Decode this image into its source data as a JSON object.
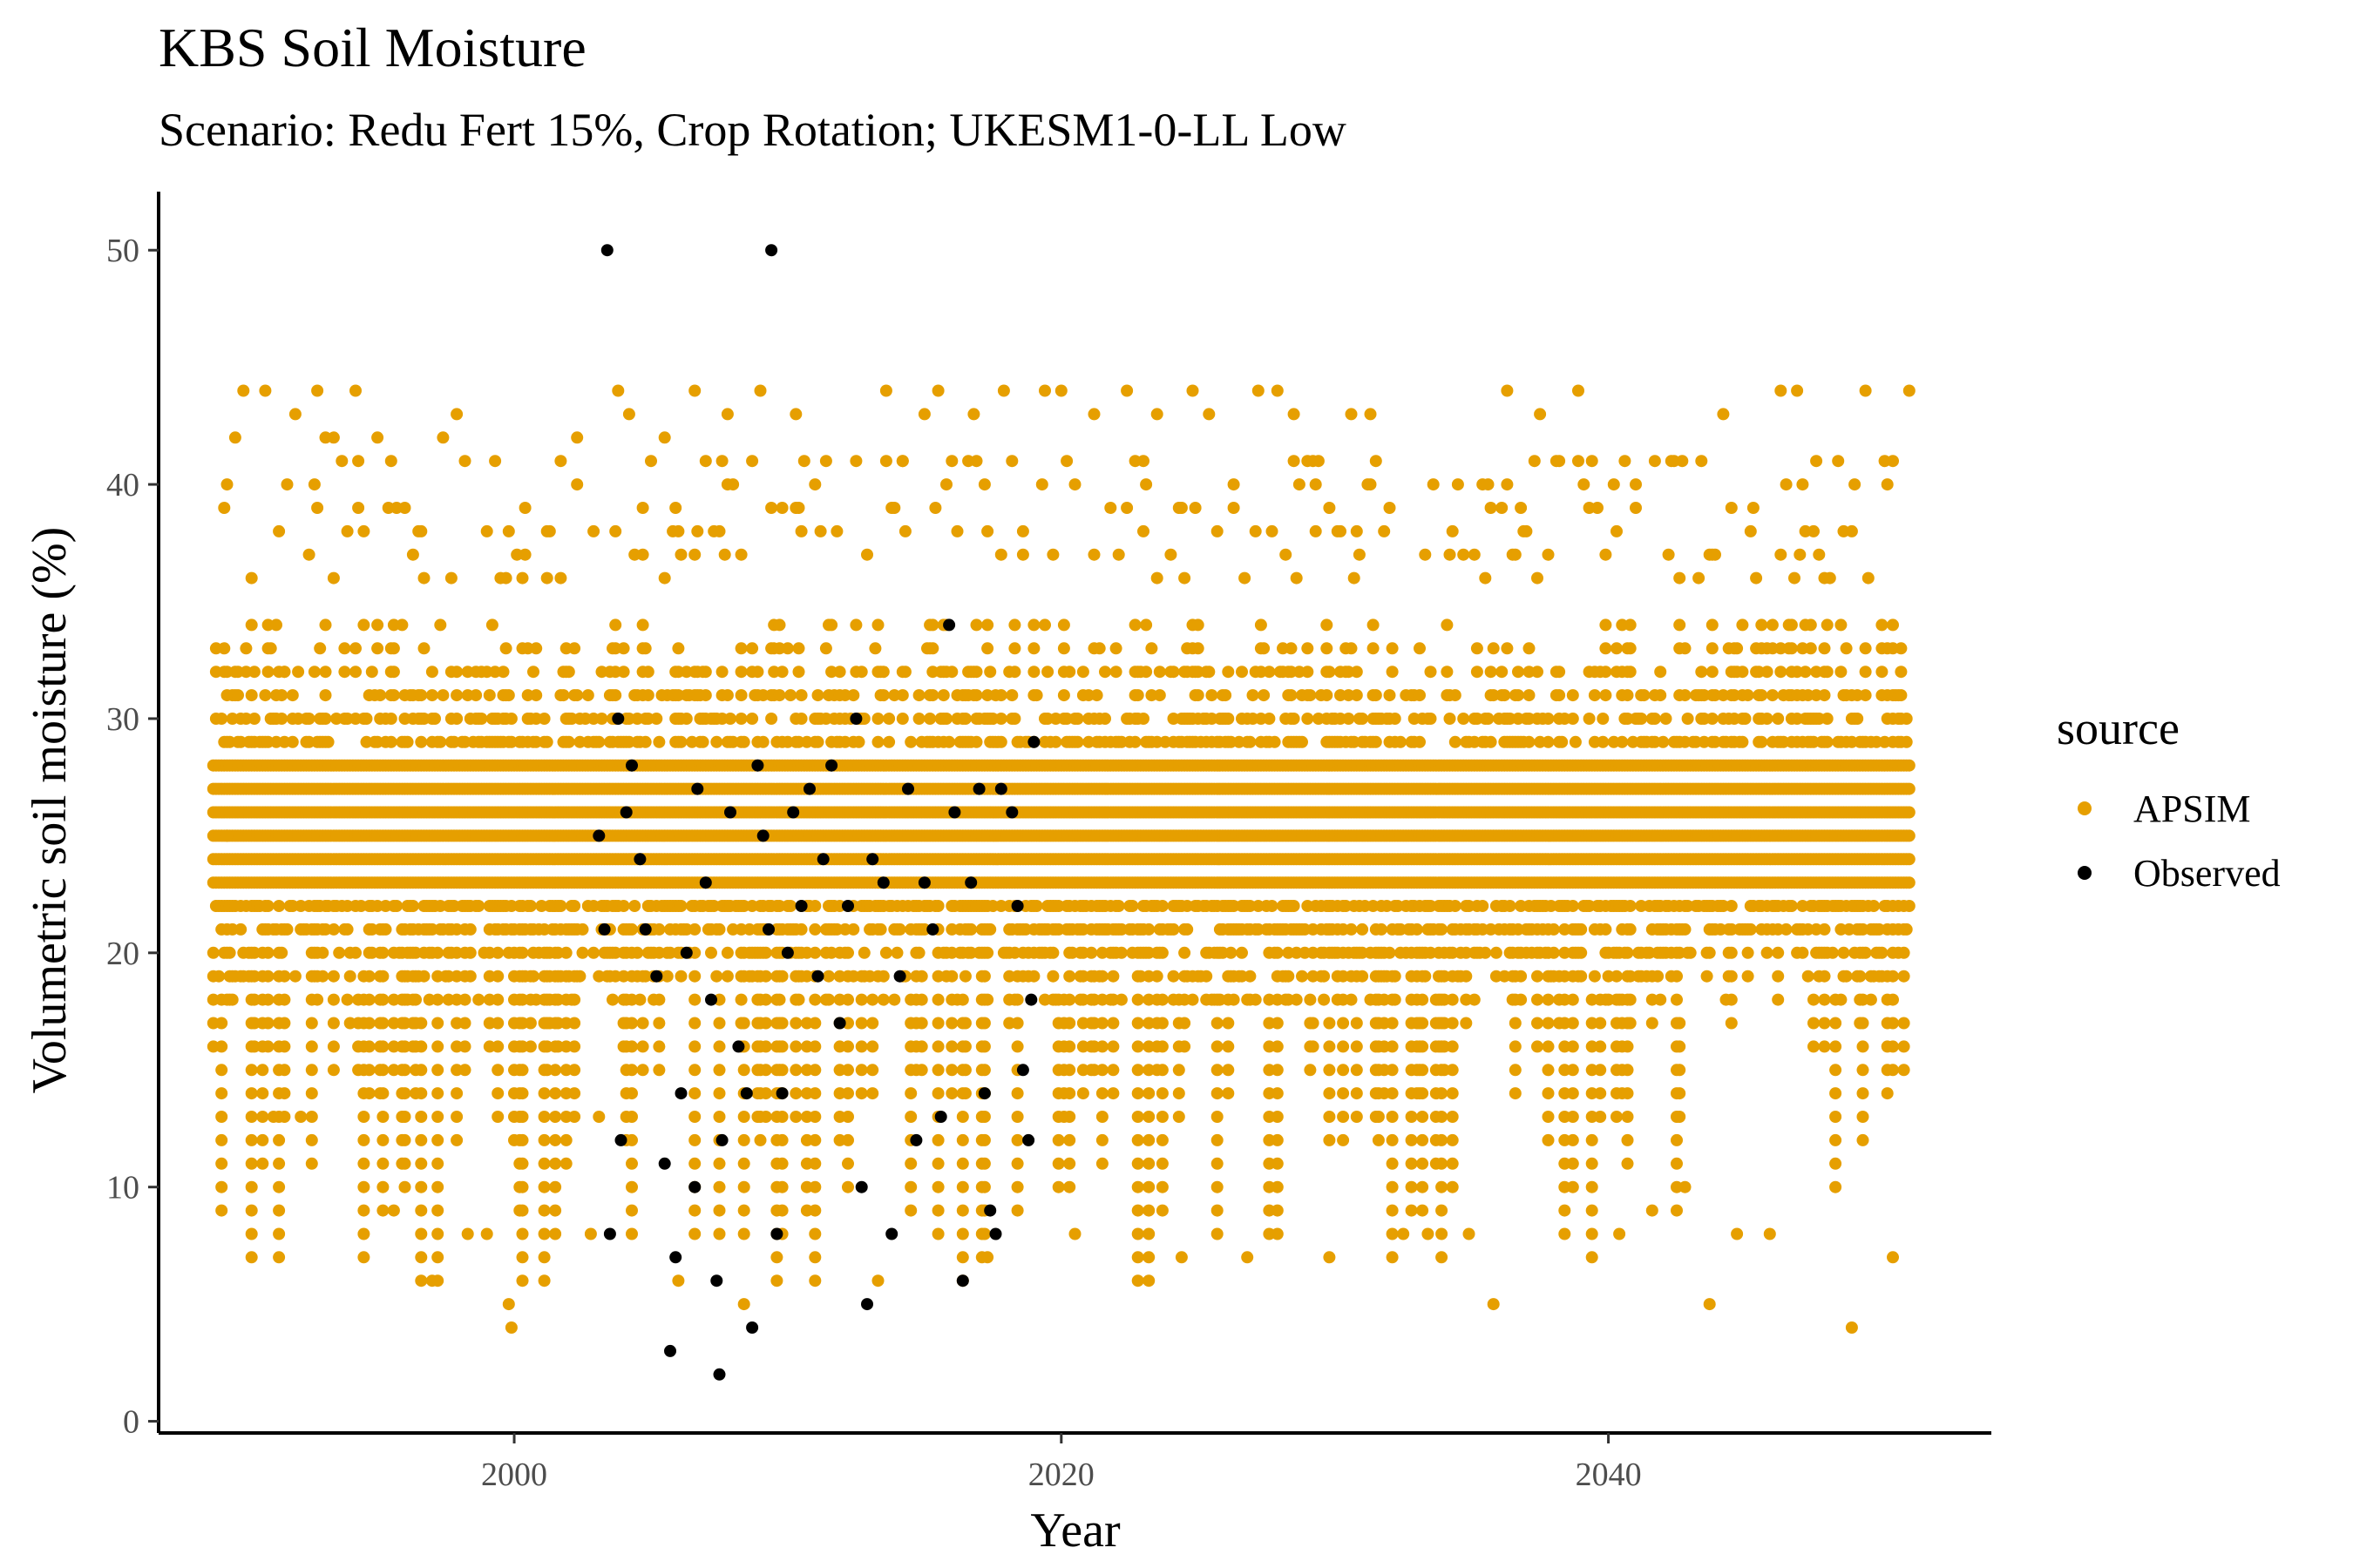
{
  "chart_data": {
    "type": "scatter",
    "title": "KBS Soil Moisture",
    "subtitle": "Scenario: Redu Fert 15%, Crop Rotation; UKESM1-0-LL Low",
    "xlabel": "Year",
    "ylabel": "Volumetric soil moisture (%)",
    "xlim": [
      1987,
      2054
    ],
    "ylim": [
      -0.5,
      52.5
    ],
    "x_ticks": [
      2000,
      2020,
      2040
    ],
    "y_ticks": [
      0,
      10,
      20,
      30,
      40,
      50
    ],
    "grid": false,
    "legend": {
      "title": "source",
      "position": "right"
    },
    "series": [
      {
        "name": "APSIM",
        "color": "#E69F00",
        "x_range": [
          1989,
          2051
        ],
        "y_range": [
          4,
          44
        ],
        "note_x_sampling": "daily",
        "points": [
          [
            1989.2,
            19
          ],
          [
            1989.5,
            25
          ],
          [
            1989.8,
            42
          ],
          [
            1990.1,
            44
          ],
          [
            1990.4,
            34
          ],
          [
            1990.9,
            44
          ],
          [
            1991.2,
            13
          ],
          [
            1991.6,
            32
          ],
          [
            1992.0,
            43
          ],
          [
            1992.2,
            13
          ],
          [
            1992.8,
            44
          ],
          [
            1993.1,
            42
          ],
          [
            1993.4,
            42
          ],
          [
            1994.0,
            17
          ],
          [
            1994.2,
            44
          ],
          [
            1994.3,
            41
          ],
          [
            1995.0,
            42
          ],
          [
            1995.6,
            9
          ],
          [
            1996.0,
            39
          ],
          [
            1996.5,
            38
          ],
          [
            1997.0,
            6
          ],
          [
            1997.4,
            42
          ],
          [
            1997.9,
            43
          ],
          [
            1998.3,
            8
          ],
          [
            1999.0,
            8
          ],
          [
            1999.5,
            36
          ],
          [
            1999.8,
            5
          ],
          [
            1999.9,
            4
          ],
          [
            2000.4,
            39
          ],
          [
            2001.2,
            38
          ],
          [
            2001.7,
            41
          ],
          [
            2002.3,
            42
          ],
          [
            2002.8,
            8
          ],
          [
            2003.1,
            13
          ],
          [
            2003.8,
            44
          ],
          [
            2004.2,
            43
          ],
          [
            2004.7,
            39
          ],
          [
            2005.5,
            42
          ],
          [
            2006.0,
            6
          ],
          [
            2006.6,
            44
          ],
          [
            2007.0,
            41
          ],
          [
            2007.8,
            43
          ],
          [
            2008.4,
            5
          ],
          [
            2009.0,
            44
          ],
          [
            2009.4,
            39
          ],
          [
            2010.3,
            43
          ],
          [
            2011.0,
            40
          ],
          [
            2011.8,
            38
          ],
          [
            2012.5,
            41
          ],
          [
            2013.3,
            6
          ],
          [
            2013.6,
            44
          ],
          [
            2014.2,
            41
          ],
          [
            2015.0,
            43
          ],
          [
            2015.5,
            44
          ],
          [
            2016.0,
            41
          ],
          [
            2016.8,
            43
          ],
          [
            2017.3,
            7
          ],
          [
            2017.9,
            44
          ],
          [
            2018.6,
            38
          ],
          [
            2019.4,
            44
          ],
          [
            2020.0,
            44
          ],
          [
            2020.5,
            8
          ],
          [
            2021.2,
            43
          ],
          [
            2021.8,
            39
          ],
          [
            2022.4,
            44
          ],
          [
            2023.0,
            41
          ],
          [
            2023.5,
            43
          ],
          [
            2024.4,
            7
          ],
          [
            2024.8,
            44
          ],
          [
            2025.4,
            43
          ],
          [
            2026.3,
            39
          ],
          [
            2026.8,
            7
          ],
          [
            2027.2,
            44
          ],
          [
            2027.9,
            44
          ],
          [
            2028.5,
            43
          ],
          [
            2029.3,
            40
          ],
          [
            2029.8,
            7
          ],
          [
            2030.6,
            43
          ],
          [
            2031.3,
            43
          ],
          [
            2032.0,
            39
          ],
          [
            2032.5,
            8
          ],
          [
            2033.4,
            8
          ],
          [
            2034.2,
            37
          ],
          [
            2034.9,
            8
          ],
          [
            2035.5,
            36
          ],
          [
            2035.8,
            5
          ],
          [
            2036.3,
            44
          ],
          [
            2036.9,
            38
          ],
          [
            2037.5,
            43
          ],
          [
            2038.2,
            41
          ],
          [
            2038.9,
            44
          ],
          [
            2039.6,
            39
          ],
          [
            2040.4,
            8
          ],
          [
            2041.0,
            40
          ],
          [
            2041.6,
            9
          ],
          [
            2042.3,
            41
          ],
          [
            2042.8,
            10
          ],
          [
            2043.4,
            41
          ],
          [
            2043.7,
            5
          ],
          [
            2044.2,
            43
          ],
          [
            2044.7,
            8
          ],
          [
            2045.3,
            39
          ],
          [
            2045.9,
            8
          ],
          [
            2046.3,
            44
          ],
          [
            2046.9,
            44
          ],
          [
            2047.5,
            38
          ],
          [
            2048.4,
            41
          ],
          [
            2048.9,
            4
          ],
          [
            2049.4,
            44
          ],
          [
            2050.1,
            41
          ],
          [
            2050.4,
            7
          ],
          [
            2051.0,
            44
          ]
        ]
      },
      {
        "name": "Observed",
        "color": "#000000",
        "points": [
          [
            2003.4,
            50
          ],
          [
            2009.4,
            50
          ],
          [
            2003.1,
            25
          ],
          [
            2003.3,
            21
          ],
          [
            2003.5,
            8
          ],
          [
            2003.8,
            30
          ],
          [
            2003.9,
            12
          ],
          [
            2004.1,
            26
          ],
          [
            2004.3,
            28
          ],
          [
            2004.6,
            24
          ],
          [
            2004.8,
            21
          ],
          [
            2005.2,
            19
          ],
          [
            2005.5,
            11
          ],
          [
            2005.7,
            3
          ],
          [
            2005.9,
            7
          ],
          [
            2006.1,
            14
          ],
          [
            2006.3,
            20
          ],
          [
            2006.6,
            10
          ],
          [
            2006.7,
            27
          ],
          [
            2007.0,
            23
          ],
          [
            2007.2,
            18
          ],
          [
            2007.4,
            6
          ],
          [
            2007.5,
            2
          ],
          [
            2007.6,
            12
          ],
          [
            2007.9,
            26
          ],
          [
            2008.2,
            16
          ],
          [
            2008.5,
            14
          ],
          [
            2008.7,
            4
          ],
          [
            2008.9,
            28
          ],
          [
            2009.1,
            25
          ],
          [
            2009.3,
            21
          ],
          [
            2009.6,
            8
          ],
          [
            2009.8,
            14
          ],
          [
            2010.0,
            20
          ],
          [
            2010.2,
            26
          ],
          [
            2010.5,
            22
          ],
          [
            2010.8,
            27
          ],
          [
            2011.1,
            19
          ],
          [
            2011.3,
            24
          ],
          [
            2011.6,
            28
          ],
          [
            2011.9,
            17
          ],
          [
            2012.2,
            22
          ],
          [
            2012.5,
            30
          ],
          [
            2012.7,
            10
          ],
          [
            2012.9,
            5
          ],
          [
            2013.1,
            24
          ],
          [
            2013.5,
            23
          ],
          [
            2013.8,
            8
          ],
          [
            2014.1,
            19
          ],
          [
            2014.4,
            27
          ],
          [
            2014.7,
            12
          ],
          [
            2015.0,
            23
          ],
          [
            2015.3,
            21
          ],
          [
            2015.6,
            13
          ],
          [
            2015.9,
            34
          ],
          [
            2016.1,
            26
          ],
          [
            2016.4,
            6
          ],
          [
            2016.7,
            23
          ],
          [
            2017.0,
            27
          ],
          [
            2017.2,
            14
          ],
          [
            2017.4,
            9
          ],
          [
            2017.6,
            8
          ],
          [
            2017.8,
            27
          ],
          [
            2018.2,
            26
          ],
          [
            2018.4,
            22
          ],
          [
            2018.6,
            15
          ],
          [
            2018.8,
            12
          ],
          [
            2018.9,
            18
          ],
          [
            2019.0,
            29
          ]
        ]
      }
    ]
  }
}
